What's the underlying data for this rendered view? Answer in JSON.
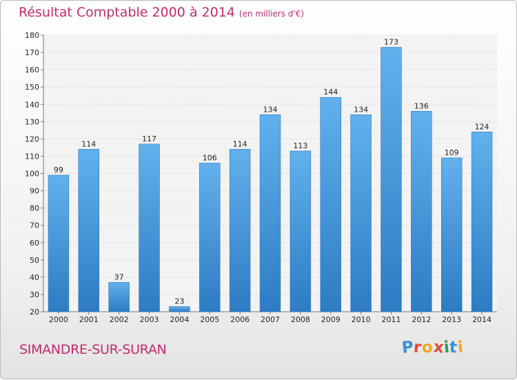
{
  "chart_data": {
    "type": "bar",
    "title": "Résultat Comptable 2000 à 2014",
    "unit_note": "(en milliers d'€)",
    "categories": [
      "2000",
      "2001",
      "2002",
      "2003",
      "2004",
      "2005",
      "2006",
      "2007",
      "2008",
      "2009",
      "2010",
      "2011",
      "2012",
      "2013",
      "2014"
    ],
    "values": [
      99,
      114,
      37,
      117,
      23,
      106,
      114,
      134,
      113,
      144,
      134,
      173,
      136,
      109,
      124
    ],
    "ylim": [
      20,
      180
    ],
    "yticks": [
      20,
      30,
      40,
      50,
      60,
      70,
      80,
      90,
      100,
      110,
      120,
      130,
      140,
      150,
      160,
      170,
      180
    ],
    "grid": true,
    "bar_color": "#3f90d8",
    "title_color": "#c42a6a"
  },
  "footer": {
    "city": "SIMANDRE-SUR-SURAN",
    "logo_text": "Proxiti",
    "logo_letters": [
      {
        "ch": "P",
        "color": "#3a8fd8"
      },
      {
        "ch": "r",
        "color": "#e24a3b"
      },
      {
        "ch": "o",
        "color": "#f5a623"
      },
      {
        "ch": "x",
        "color": "#e24a3b"
      },
      {
        "ch": "i",
        "color": "#2aa14a"
      },
      {
        "ch": "t",
        "color": "#3a8fd8"
      },
      {
        "ch": "i",
        "color": "#f5a623"
      }
    ]
  }
}
